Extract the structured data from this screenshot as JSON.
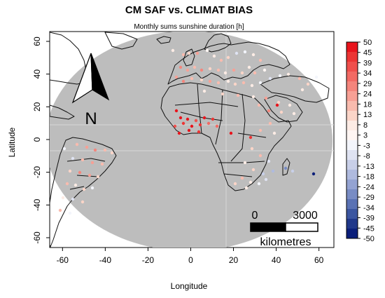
{
  "header": {
    "title": "CM SAF vs. CLIMAT BIAS",
    "subtitle": "Monthly sums sunshine duration [h]"
  },
  "axes": {
    "xlabel": "Longitude",
    "ylabel": "Latitude",
    "x_ticks": [
      "-60",
      "-40",
      "-20",
      "0",
      "20",
      "40",
      "60"
    ],
    "y_ticks": [
      "60",
      "40",
      "20",
      "0",
      "-20",
      "-40",
      "-60"
    ],
    "x_range": [
      -66,
      67
    ],
    "y_range": [
      -66,
      66
    ]
  },
  "north_arrow": {
    "label": "N"
  },
  "scale_bar": {
    "start_label": "0",
    "end_label": "3000",
    "unit_label": "kilometres"
  },
  "legend": {
    "labels": [
      "50",
      "45",
      "39",
      "34",
      "29",
      "24",
      "18",
      "13",
      "8",
      "3",
      "-3",
      "-8",
      "-13",
      "-18",
      "-24",
      "-29",
      "-34",
      "-39",
      "-45",
      "-50"
    ],
    "colors": [
      "#e8141c",
      "#ec3534",
      "#ef4f4c",
      "#f26a64",
      "#f4857c",
      "#f7a095",
      "#f9bbae",
      "#fbd5c8",
      "#fdece5",
      "#fff6f3",
      "#f3f5fb",
      "#dfe3f2",
      "#c8cfe8",
      "#afbade",
      "#94a3d2",
      "#788cc4",
      "#5a72b4",
      "#3b56a0",
      "#20388a",
      "#0b1f7a"
    ]
  },
  "colors": {
    "disk": "#bdbdbd",
    "land_outline": "#111111",
    "grid": "#d8d8d8"
  }
}
